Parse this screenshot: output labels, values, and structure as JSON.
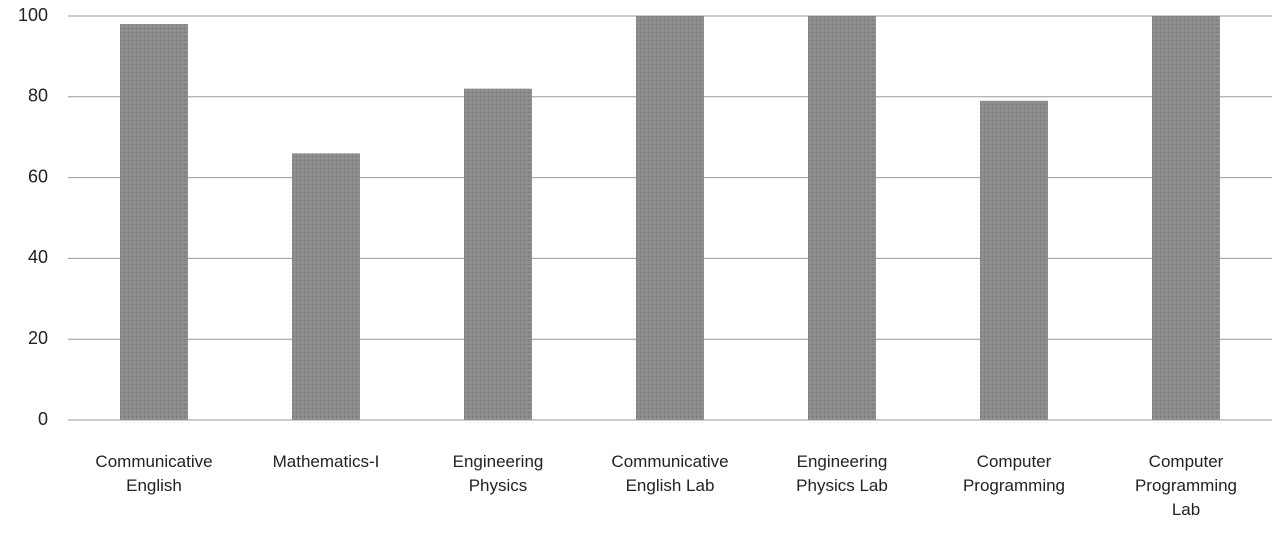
{
  "chart_data": {
    "type": "bar",
    "categories": [
      "Communicative English",
      "Mathematics-I",
      "Engineering Physics",
      "Communicative English Lab",
      "Engineering Physics Lab",
      "Computer Programming",
      "Computer Programming Lab"
    ],
    "values": [
      98,
      66,
      82,
      100,
      100,
      79,
      100
    ],
    "color": "#8c8c8c",
    "ylim": [
      0,
      100
    ],
    "yticks": [
      0,
      20,
      40,
      60,
      80,
      100
    ],
    "grid": true
  }
}
